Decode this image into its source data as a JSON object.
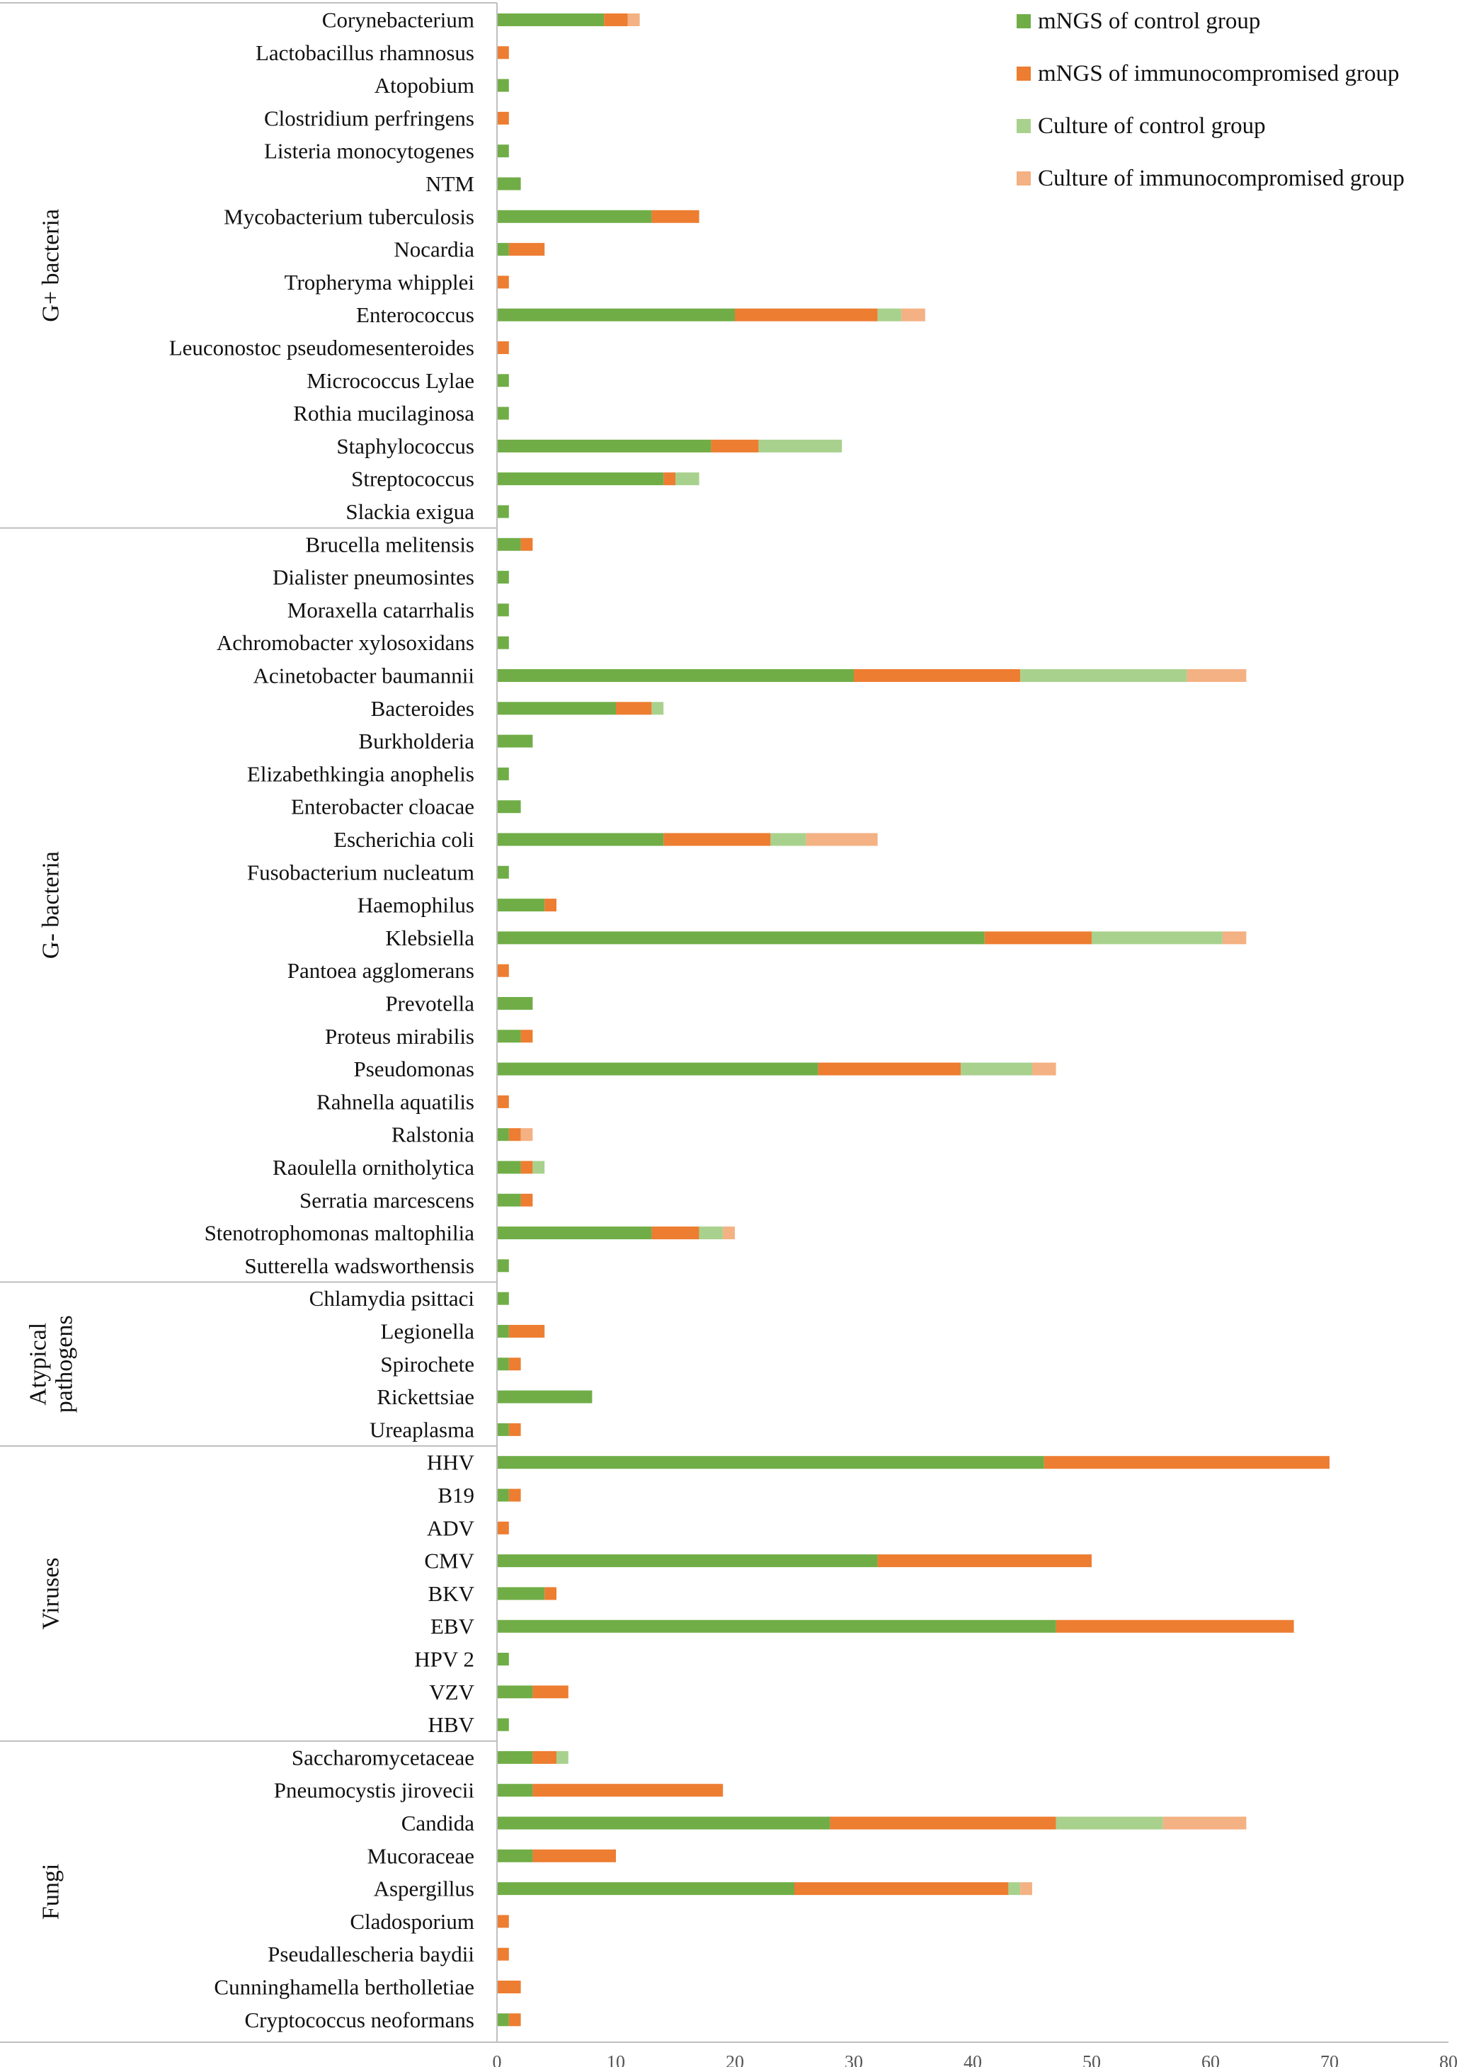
{
  "colors": {
    "mngs_control": "#70AD47",
    "mngs_immuno": "#ED7D31",
    "culture_control": "#A9D18E",
    "culture_immuno": "#F4B183",
    "axis": "#BFBFBF",
    "text": "#111111"
  },
  "chart_data": {
    "type": "bar",
    "orientation": "horizontal",
    "stacked": true,
    "title": "",
    "xlabel": "",
    "ylabel": "",
    "xlim": [
      0,
      80
    ],
    "xticks": [
      "0",
      "10",
      "20",
      "30",
      "40",
      "50",
      "60",
      "70",
      "80"
    ],
    "grid": false,
    "legend_position": "top-right",
    "categories": [
      "Corynebacterium",
      "Lactobacillus rhamnosus",
      "Atopobium",
      "Clostridium perfringens",
      "Listeria monocytogenes",
      "NTM",
      "Mycobacterium tuberculosis",
      "Nocardia",
      "Tropheryma whipplei",
      "Enterococcus",
      "Leuconostoc pseudomesenteroides",
      "Micrococcus Lylae",
      "Rothia mucilaginosa",
      "Staphylococcus",
      "Streptococcus",
      "Slackia exigua",
      "Brucella melitensis",
      "Dialister  pneumosintes",
      "Moraxella catarrhalis",
      "Achromobacter xylosoxidans",
      "Acinetobacter  baumannii",
      "Bacteroides",
      "Burkholderia",
      "Elizabethkingia anophelis",
      "Enterobacter cloacae",
      "Escherichia coli",
      "Fusobacterium nucleatum",
      "Haemophilus",
      "Klebsiella",
      "Pantoea agglomerans",
      "Prevotella",
      "Proteus mirabilis",
      "Pseudomonas",
      "Rahnella aquatilis",
      "Ralstonia",
      "Raoulella ornitholytica",
      "Serratia marcescens",
      "Stenotrophomonas maltophilia",
      "Sutterella wadsworthensis",
      "Chlamydia psittaci",
      "Legionella",
      "Spirochete",
      "Rickettsiae",
      "Ureaplasma",
      "HHV",
      "B19",
      "ADV",
      "CMV",
      "BKV",
      "EBV",
      "HPV 2",
      "VZV",
      "HBV",
      "Saccharomycetaceae",
      "Pneumocystis jirovecii",
      "Candida",
      "Mucoraceae",
      "Aspergillus",
      "Cladosporium",
      "Pseudallescheria baydii",
      "Cunninghamella bertholletiae",
      "Cryptococcus neoformans"
    ],
    "groups": [
      {
        "name": "G+ bacteria",
        "count": 16
      },
      {
        "name": "G- bacteria",
        "count": 23
      },
      {
        "name": "Atypical pathogens",
        "count": 5
      },
      {
        "name": "Viruses",
        "count": 9
      },
      {
        "name": "Fungi",
        "count": 9
      }
    ],
    "series": [
      {
        "name": "mNGS of control group",
        "color_key": "mngs_control",
        "values": [
          9,
          0,
          1,
          0,
          1,
          2,
          13,
          1,
          0,
          20,
          0,
          1,
          1,
          18,
          14,
          1,
          2,
          1,
          1,
          1,
          30,
          10,
          3,
          1,
          2,
          14,
          1,
          4,
          41,
          0,
          3,
          2,
          27,
          0,
          1,
          2,
          2,
          13,
          1,
          1,
          1,
          1,
          8,
          1,
          46,
          1,
          0,
          32,
          4,
          47,
          1,
          3,
          1,
          3,
          3,
          28,
          3,
          25,
          0,
          0,
          0,
          1
        ]
      },
      {
        "name": "mNGS of immunocompromised group",
        "color_key": "mngs_immuno",
        "values": [
          2,
          1,
          0,
          1,
          0,
          0,
          4,
          3,
          1,
          12,
          1,
          0,
          0,
          4,
          1,
          0,
          1,
          0,
          0,
          0,
          14,
          3,
          0,
          0,
          0,
          9,
          0,
          1,
          9,
          1,
          0,
          1,
          12,
          1,
          1,
          1,
          1,
          4,
          0,
          0,
          3,
          1,
          0,
          1,
          24,
          1,
          1,
          18,
          1,
          20,
          0,
          3,
          0,
          2,
          16,
          19,
          7,
          18,
          1,
          1,
          2,
          1
        ]
      },
      {
        "name": "Culture of control group",
        "color_key": "culture_control",
        "values": [
          0,
          0,
          0,
          0,
          0,
          0,
          0,
          0,
          0,
          2,
          0,
          0,
          0,
          7,
          2,
          0,
          0,
          0,
          0,
          0,
          14,
          1,
          0,
          0,
          0,
          3,
          0,
          0,
          11,
          0,
          0,
          0,
          6,
          0,
          0,
          1,
          0,
          2,
          0,
          0,
          0,
          0,
          0,
          0,
          0,
          0,
          0,
          0,
          0,
          0,
          0,
          0,
          0,
          1,
          0,
          9,
          0,
          1,
          0,
          0,
          0,
          0
        ]
      },
      {
        "name": "Culture of immunocompromised group",
        "color_key": "culture_immuno",
        "values": [
          1,
          0,
          0,
          0,
          0,
          0,
          0,
          0,
          0,
          2,
          0,
          0,
          0,
          0,
          0,
          0,
          0,
          0,
          0,
          0,
          5,
          0,
          0,
          0,
          0,
          6,
          0,
          0,
          2,
          0,
          0,
          0,
          2,
          0,
          1,
          0,
          0,
          1,
          0,
          0,
          0,
          0,
          0,
          0,
          0,
          0,
          0,
          0,
          0,
          0,
          0,
          0,
          0,
          0,
          0,
          7,
          0,
          1,
          0,
          0,
          0,
          0
        ]
      }
    ]
  }
}
